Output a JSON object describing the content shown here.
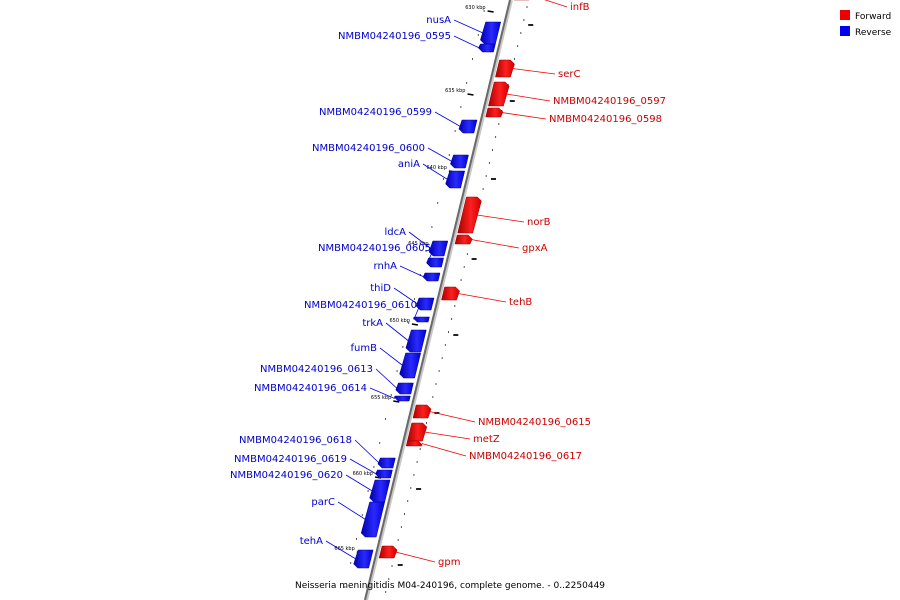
{
  "caption": "Neisseria meningitidis M04-240196, complete genome. - 0..2250449",
  "legend": [
    {
      "label": "Forward",
      "color": "#ee0000"
    },
    {
      "label": "Reverse",
      "color": "#0000ee"
    }
  ],
  "ticks": [
    "630 kbp",
    "635 kbp",
    "640 kbp",
    "645 kbp",
    "650 kbp",
    "655 kbp",
    "660 kbp",
    "665 kbp"
  ],
  "genes": [
    {
      "name": "infB",
      "strand": "forward"
    },
    {
      "name": "nusA",
      "strand": "reverse"
    },
    {
      "name": "NMBM04240196_0595",
      "strand": "reverse"
    },
    {
      "name": "serC",
      "strand": "forward"
    },
    {
      "name": "NMBM04240196_0597",
      "strand": "forward"
    },
    {
      "name": "NMBM04240196_0598",
      "strand": "forward"
    },
    {
      "name": "NMBM04240196_0599",
      "strand": "reverse"
    },
    {
      "name": "NMBM04240196_0600",
      "strand": "reverse"
    },
    {
      "name": "aniA",
      "strand": "reverse"
    },
    {
      "name": "norB",
      "strand": "forward"
    },
    {
      "name": "ldcA",
      "strand": "reverse"
    },
    {
      "name": "NMBM04240196_0605",
      "strand": "reverse"
    },
    {
      "name": "gpxA",
      "strand": "forward"
    },
    {
      "name": "rnhA",
      "strand": "reverse"
    },
    {
      "name": "thiD",
      "strand": "reverse"
    },
    {
      "name": "tehB",
      "strand": "forward"
    },
    {
      "name": "NMBM04240196_0610",
      "strand": "reverse"
    },
    {
      "name": "trkA",
      "strand": "reverse"
    },
    {
      "name": "fumB",
      "strand": "reverse"
    },
    {
      "name": "NMBM04240196_0613",
      "strand": "reverse"
    },
    {
      "name": "NMBM04240196_0614",
      "strand": "reverse"
    },
    {
      "name": "NMBM04240196_0615",
      "strand": "forward"
    },
    {
      "name": "metZ",
      "strand": "forward"
    },
    {
      "name": "NMBM04240196_0617",
      "strand": "forward"
    },
    {
      "name": "NMBM04240196_0618",
      "strand": "reverse"
    },
    {
      "name": "NMBM04240196_0619",
      "strand": "reverse"
    },
    {
      "name": "NMBM04240196_0620",
      "strand": "reverse"
    },
    {
      "name": "parC",
      "strand": "reverse"
    },
    {
      "name": "tehA",
      "strand": "reverse"
    },
    {
      "name": "gpm",
      "strand": "forward"
    }
  ]
}
